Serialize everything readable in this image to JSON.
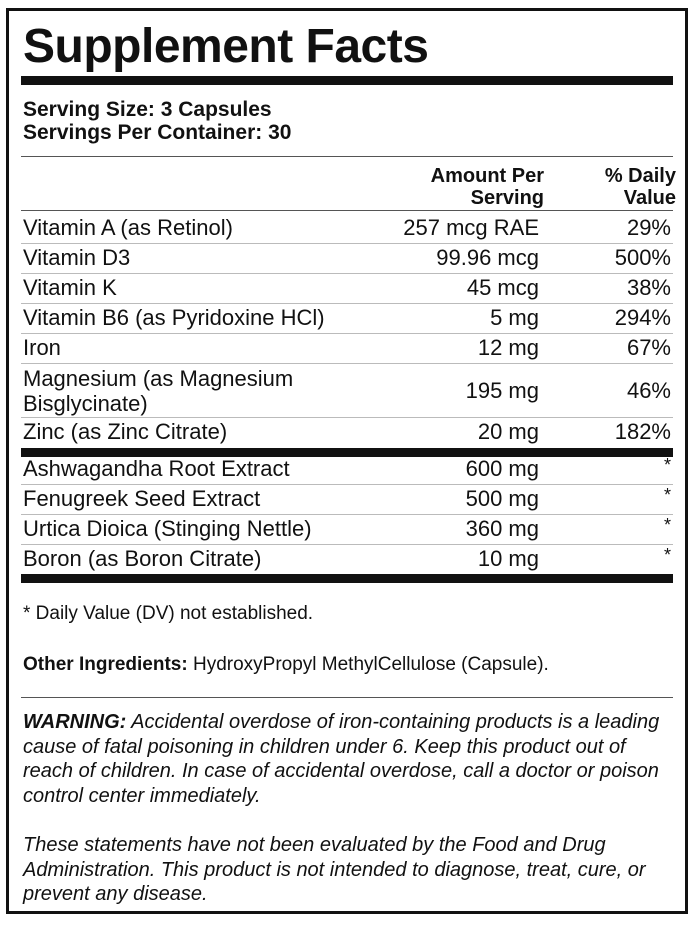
{
  "title": "Supplement Facts",
  "serving_size": "Serving Size: 3 Capsules",
  "servings_per_container": "Servings Per Container: 30",
  "headers": {
    "amount_line1": "Amount Per",
    "amount_line2": "Serving",
    "dv_line1": "% Daily",
    "dv_line2": "Value"
  },
  "nutrients": [
    {
      "name": "Vitamin A (as Retinol)",
      "amount": "257 mcg RAE",
      "dv": "29%"
    },
    {
      "name": "Vitamin D3",
      "amount": "99.96 mcg",
      "dv": "500%"
    },
    {
      "name": "Vitamin K",
      "amount": "45 mcg",
      "dv": "38%"
    },
    {
      "name": "Vitamin B6 (as Pyridoxine HCl)",
      "amount": "5 mg",
      "dv": "294%"
    },
    {
      "name": "Iron",
      "amount": "12 mg",
      "dv": "67%"
    },
    {
      "name_line1": "Magnesium (as Magnesium",
      "name_line2": "Bisglycinate)",
      "amount": "195 mg",
      "dv": "46%"
    },
    {
      "name": "Zinc (as Zinc Citrate)",
      "amount": "20 mg",
      "dv": "182%"
    }
  ],
  "extracts": [
    {
      "name": "Ashwagandha Root Extract",
      "amount": "600 mg",
      "dv": "*"
    },
    {
      "name": "Fenugreek Seed Extract",
      "amount": "500 mg",
      "dv": "*"
    },
    {
      "name": "Urtica Dioica (Stinging Nettle)",
      "amount": "360 mg",
      "dv": "*"
    },
    {
      "name": "Boron (as Boron Citrate)",
      "amount": "10 mg",
      "dv": "*"
    }
  ],
  "dv_note": "* Daily Value (DV) not established.",
  "other_ingredients": {
    "label": "Other Ingredients:",
    "text": " HydroxyPropyl MethylCellulose (Capsule)."
  },
  "warning": {
    "label": "WARNING:",
    "text": " Accidental overdose of iron-containing products is a leading cause of fatal poisoning in children under 6. Keep this product out of reach of children. In case of accidental overdose, call a doctor or poison control center immediately."
  },
  "fda_statement": "These statements have not been evaluated by the Food and Drug Administration. This product is not intended to diagnose, treat, cure, or prevent any disease."
}
